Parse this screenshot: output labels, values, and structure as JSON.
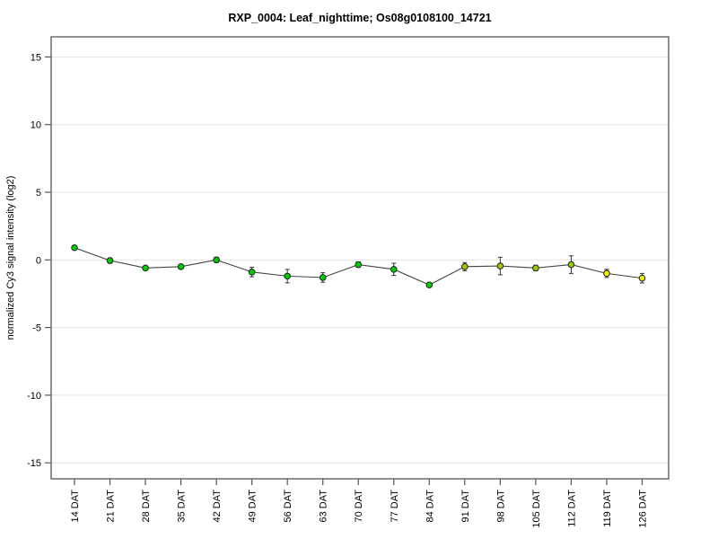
{
  "title": "RXP_0004: Leaf_nighttime; Os08g0108100_14721",
  "chart_data": {
    "type": "line",
    "title": "RXP_0004: Leaf_nighttime; Os08g0108100_14721",
    "xlabel": "",
    "ylabel": "normalized Cy3 signal intensity (log2)",
    "categories": [
      "14 DAT",
      "21 DAT",
      "28 DAT",
      "35 DAT",
      "42 DAT",
      "49 DAT",
      "56 DAT",
      "63 DAT",
      "70 DAT",
      "77 DAT",
      "84 DAT",
      "91 DAT",
      "98 DAT",
      "105 DAT",
      "112 DAT",
      "119 DAT",
      "126 DAT"
    ],
    "series": [
      {
        "name": "normalized Cy3 signal intensity",
        "values": [
          0.9,
          -0.05,
          -0.6,
          -0.5,
          0.0,
          -0.9,
          -1.2,
          -1.3,
          -0.35,
          -0.7,
          -1.85,
          -0.5,
          -0.45,
          -0.6,
          -0.35,
          -1.0,
          -1.35
        ],
        "errors": [
          0.15,
          0.2,
          0.15,
          0.15,
          0.2,
          0.35,
          0.5,
          0.35,
          0.2,
          0.45,
          0.15,
          0.3,
          0.65,
          0.2,
          0.65,
          0.3,
          0.35
        ],
        "point_colors": [
          "green",
          "green",
          "green",
          "green",
          "green",
          "green",
          "green",
          "green",
          "green",
          "green",
          "green",
          "yellowgreen",
          "yellowgreen",
          "yellowgreen",
          "yellowgreen",
          "yellow",
          "yellow"
        ]
      }
    ],
    "ylim": [
      -16.3,
      16.5
    ],
    "y_ticks": [
      -15,
      -10,
      -5,
      0,
      5,
      10,
      15
    ],
    "grid": true,
    "legend": "none",
    "marker": "circle",
    "colors": {
      "green": "#00CC00",
      "yellowgreen": "#99CC00",
      "yellow": "#EEEE00",
      "line": "#444444",
      "errorbar": "#333333",
      "marker_stroke": "#222222",
      "grid": "#E4E4E4",
      "frame": "#555555",
      "text": "#000000"
    }
  }
}
